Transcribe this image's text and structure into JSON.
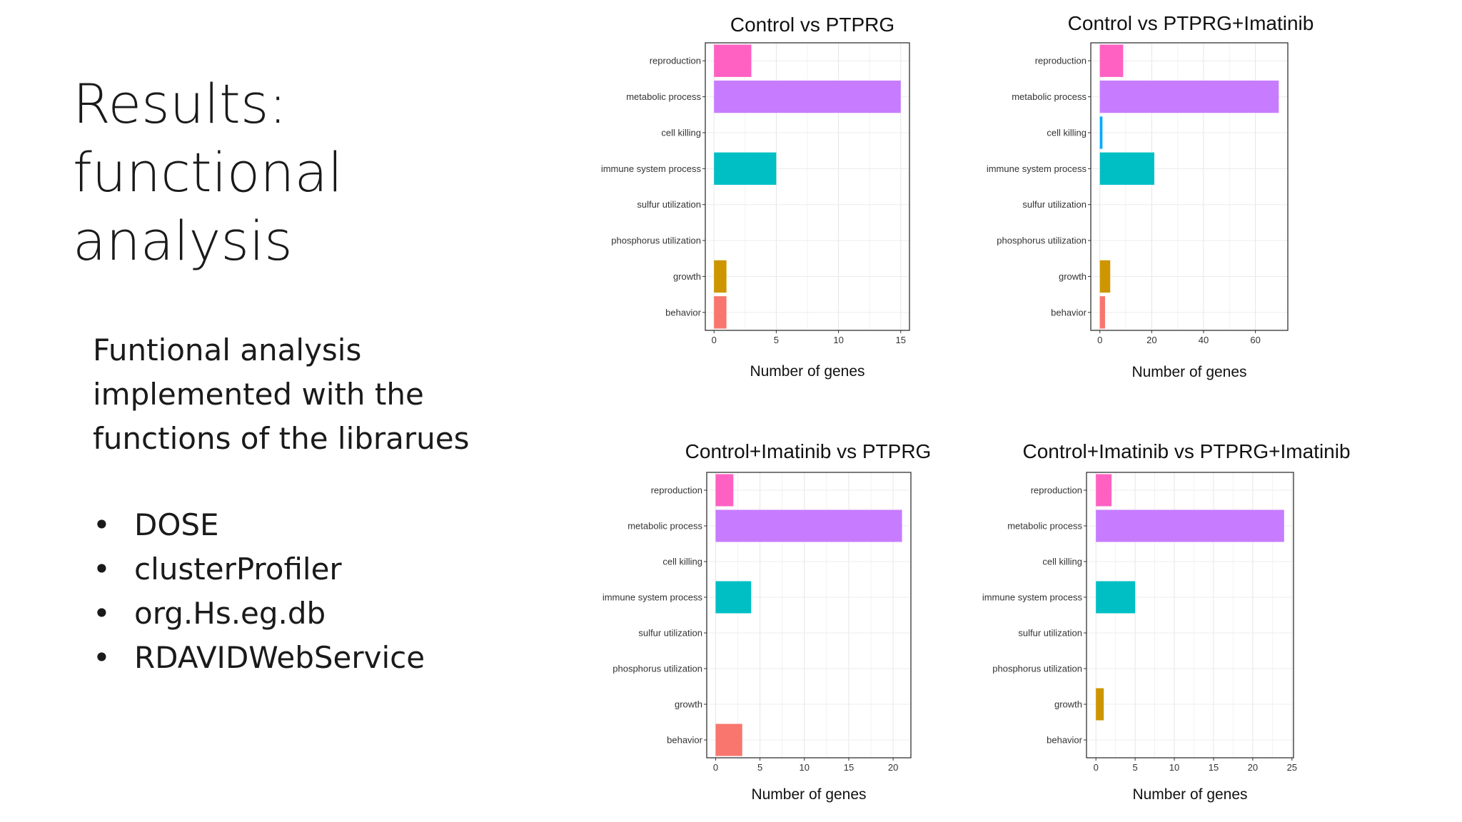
{
  "slide": {
    "title": "Results: functional analysis",
    "description": "Funtional analysis implemented with the functions of the librarues",
    "libraries": [
      "DOSE",
      "clusterProfiler",
      "org.Hs.eg.db",
      "RDAVIDWebService"
    ]
  },
  "chart_data": [
    {
      "type": "bar",
      "orientation": "horizontal",
      "title": "Control vs PTPRG",
      "xlabel": "Number of genes",
      "categories": [
        "reproduction",
        "metabolic process",
        "cell killing",
        "immune system process",
        "sulfur utilization",
        "phosphorus utilization",
        "growth",
        "behavior"
      ],
      "values": [
        3,
        15,
        0,
        5,
        0,
        0,
        1,
        1
      ],
      "xlim": [
        -0.7,
        15.7
      ],
      "xticks": [
        0,
        5,
        10,
        15
      ],
      "grid": true,
      "legend": "none"
    },
    {
      "type": "bar",
      "orientation": "horizontal",
      "title": "Control vs PTPRG+Imatinib",
      "xlabel": "Number of genes",
      "categories": [
        "reproduction",
        "metabolic process",
        "cell killing",
        "immune system process",
        "sulfur utilization",
        "phosphorus utilization",
        "growth",
        "behavior"
      ],
      "values": [
        9,
        69,
        1,
        21,
        0,
        0,
        4,
        2
      ],
      "xlim": [
        -3.5,
        72.5
      ],
      "xticks": [
        0,
        20,
        40,
        60
      ],
      "grid": true,
      "legend": "none"
    },
    {
      "type": "bar",
      "orientation": "horizontal",
      "title": "Control+Imatinib vs PTPRG",
      "xlabel": "Number of genes",
      "categories": [
        "reproduction",
        "metabolic process",
        "cell killing",
        "immune system process",
        "sulfur utilization",
        "phosphorus utilization",
        "growth",
        "behavior"
      ],
      "values": [
        2,
        21,
        0,
        4,
        0,
        0,
        0,
        3
      ],
      "xlim": [
        -1,
        22
      ],
      "xticks": [
        0,
        5,
        10,
        15,
        20
      ],
      "grid": true,
      "legend": "none"
    },
    {
      "type": "bar",
      "orientation": "horizontal",
      "title": "Control+Imatinib vs PTPRG+Imatinib",
      "xlabel": "Number of genes",
      "categories": [
        "reproduction",
        "metabolic process",
        "cell killing",
        "immune system process",
        "sulfur utilization",
        "phosphorus utilization",
        "growth",
        "behavior"
      ],
      "values": [
        2,
        24,
        0,
        5,
        0,
        0,
        1,
        0
      ],
      "xlim": [
        -1.2,
        25.2
      ],
      "xticks": [
        0,
        5,
        10,
        15,
        20,
        25
      ],
      "grid": true,
      "legend": "none"
    }
  ],
  "category_colors": {
    "reproduction": "#FF61C3",
    "metabolic process": "#C77CFF",
    "cell killing": "#00A9FF",
    "immune system process": "#00BFC4",
    "sulfur utilization": "#00BE67",
    "phosphorus utilization": "#7CAE00",
    "growth": "#CD9600",
    "behavior": "#F8766D"
  }
}
